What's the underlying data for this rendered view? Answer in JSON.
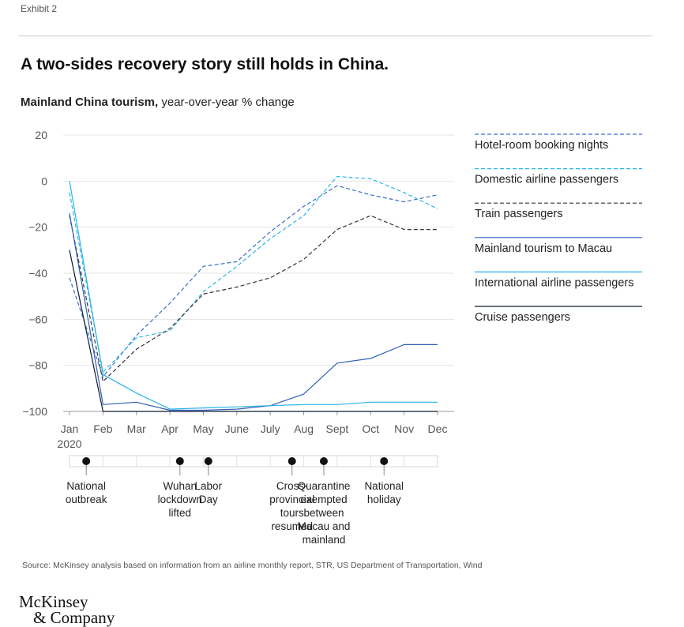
{
  "exhibit": "Exhibit 2",
  "headline": "A two-sides recovery story still holds in China.",
  "subtitle": {
    "bold": "Mainland China tourism,",
    "rest": " year-over-year % change"
  },
  "chart_data": {
    "type": "line",
    "ylim": [
      -100,
      20
    ],
    "yticks": [
      "20",
      "0",
      "−20",
      "−40",
      "−60",
      "−80",
      "−100"
    ],
    "categories": [
      "Jan",
      "Feb",
      "Mar",
      "Apr",
      "May",
      "June",
      "July",
      "Aug",
      "Sept",
      "Oct",
      "Nov",
      "Dec"
    ],
    "x_year_label": "2020",
    "grid": true,
    "legend_position": "right",
    "series": [
      {
        "name": "Hotel-room booking nights",
        "style": "dashed",
        "color": "#3a6fc9",
        "values": [
          -42,
          -85,
          -67,
          -53,
          -37,
          -35,
          -22,
          -11,
          -2,
          -6,
          -9,
          -6
        ]
      },
      {
        "name": "Domestic airline passengers",
        "style": "dashed",
        "color": "#2ab6ea",
        "values": [
          -5,
          -83,
          -68,
          -65,
          -48,
          -37,
          -25,
          -15,
          2,
          1,
          -5,
          -12
        ]
      },
      {
        "name": "Train passengers",
        "style": "dashed",
        "color": "#333333",
        "values": [
          -15,
          -87,
          -73,
          -64,
          -49,
          -46,
          -42,
          -34,
          -21,
          -15,
          -21,
          -21
        ]
      },
      {
        "name": "Mainland tourism to Macau",
        "style": "solid",
        "color": "#2f5fb8",
        "values": [
          -14,
          -97,
          -96,
          -99.5,
          -99.5,
          -99,
          -97.5,
          -92.5,
          -79,
          -77,
          -71,
          -71
        ]
      },
      {
        "name": "International airline passengers",
        "style": "solid",
        "color": "#27b4e8",
        "values": [
          0,
          -84,
          -92,
          -99,
          -98.5,
          -98,
          -97.5,
          -97,
          -97,
          -96,
          -96,
          -96
        ]
      },
      {
        "name": "Cruise passengers",
        "style": "solid",
        "color": "#0d1a33",
        "values": [
          -30,
          -100,
          -100,
          -100,
          -100,
          -100,
          -100,
          -100,
          -100,
          -100,
          -100,
          -100
        ]
      }
    ],
    "timeline_events": [
      {
        "month_index": 0.5,
        "lines": [
          "National",
          "outbreak"
        ]
      },
      {
        "month_index": 3.3,
        "lines": [
          "Wuhan",
          "lockdown",
          "lifted"
        ]
      },
      {
        "month_index": 4.15,
        "lines": [
          "Labor",
          "Day"
        ]
      },
      {
        "month_index": 6.65,
        "lines": [
          "Cross-",
          "provincial",
          "tours",
          "resumed"
        ]
      },
      {
        "month_index": 7.6,
        "lines": [
          "Quarantine",
          "exempted",
          "between",
          "Macau and",
          "mainland"
        ]
      },
      {
        "month_index": 9.4,
        "lines": [
          "National",
          "holiday"
        ]
      }
    ]
  },
  "source": "Source: McKinsey analysis based on information from an airline monthly report, STR, US Department of Transportation, Wind",
  "logo": {
    "line1": "McKinsey",
    "line2": "& Company"
  }
}
